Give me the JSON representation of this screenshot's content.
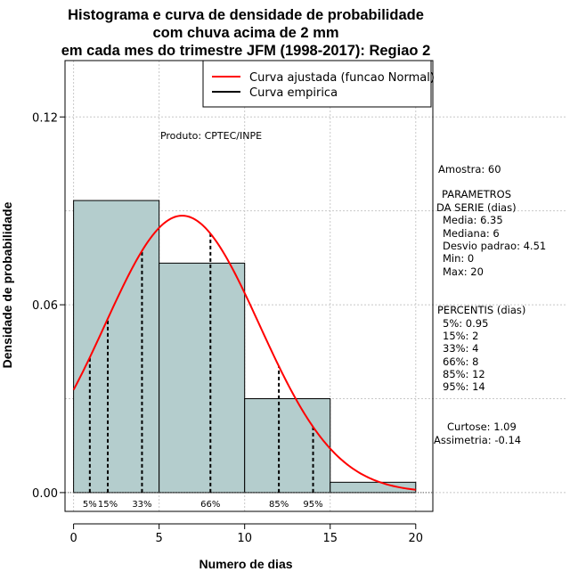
{
  "chart_data": {
    "type": "bar",
    "title_lines": [
      "Histograma e curva de densidade de probabilidade",
      "com chuva acima de 2 mm",
      "em cada mes do trimestre JFM (1998-2017): Regiao 2"
    ],
    "xlabel": "Numero de dias",
    "ylabel": "Densidade de probabilidade",
    "xlim": [
      -0.5,
      21.0
    ],
    "ylim": [
      -0.006,
      0.138
    ],
    "x_ticks": [
      0,
      5,
      10,
      15,
      20
    ],
    "x_tick_labels": [
      "0",
      "5",
      "10",
      "15",
      "20"
    ],
    "y_ticks": [
      0.0,
      0.06,
      0.12
    ],
    "y_tick_labels": [
      "0.00",
      "0.06",
      "0.12"
    ],
    "grid": true,
    "histogram": [
      {
        "start": 0,
        "end": 5,
        "density": 0.0933
      },
      {
        "start": 5,
        "end": 10,
        "density": 0.0733
      },
      {
        "start": 10,
        "end": 15,
        "density": 0.03
      },
      {
        "start": 15,
        "end": 20,
        "density": 0.0033
      }
    ],
    "normal_curve": {
      "mean": 6.35,
      "sd": 4.51,
      "scale": 1.0
    },
    "legend": [
      {
        "label": "Curva ajustada (funcao Normal)",
        "color": "#ff0000"
      },
      {
        "label": "Curva empirica",
        "color": "#000000"
      }
    ],
    "product_label": "Produto: CPTEC/INPE",
    "percentiles": [
      {
        "label": "5%",
        "x": 0.95
      },
      {
        "label": "15%",
        "x": 2
      },
      {
        "label": "33%",
        "x": 4
      },
      {
        "label": "66%",
        "x": 8
      },
      {
        "label": "85%",
        "x": 12
      },
      {
        "label": "95%",
        "x": 14
      }
    ],
    "stats_text": {
      "amostra": "Amostra: 60",
      "params_title_1": "PARAMETROS",
      "params_title_2": "DA SERIE (dias)",
      "media": "Media: 6.35",
      "mediana": "Mediana: 6",
      "desvio": "Desvio padrao: 4.51",
      "min": "Min: 0",
      "max": "Max: 20",
      "percentis_title": "PERCENTIS (dias)",
      "p5": "5%: 0.95",
      "p15": "15%: 2",
      "p33": "33%: 4",
      "p66": "66%: 8",
      "p85": "85%: 12",
      "p95": "95%: 14",
      "curtose": "Curtose: 1.09",
      "assimetria": "Assimetria: -0.14"
    },
    "colors": {
      "bar_fill": "#b4cdcd",
      "curve": "#ff0000",
      "grid": "#c8c8c8"
    }
  }
}
